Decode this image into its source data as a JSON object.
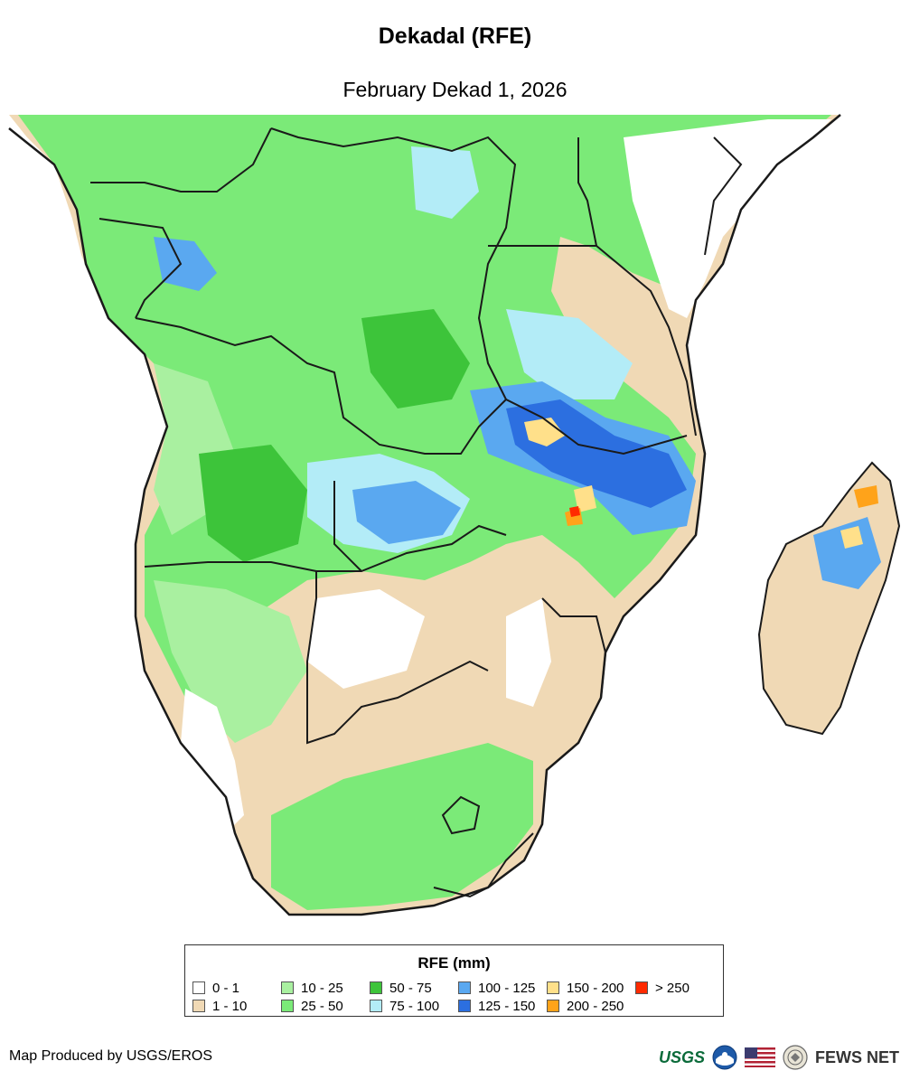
{
  "header": {
    "title": "Dekadal (RFE)",
    "subtitle": "February Dekad 1, 2026"
  },
  "map": {
    "region": "Southern Africa",
    "layer": "rainfall estimate",
    "colors": {
      "ocean_background": "#ffffff",
      "boundary_line": "#1a1a1a"
    }
  },
  "legend": {
    "title": "RFE (mm)",
    "classes": [
      {
        "label": "0 - 1",
        "color": "#ffffff"
      },
      {
        "label": "1 - 10",
        "color": "#f0d9b5"
      },
      {
        "label": "10 - 25",
        "color": "#a9f0a0"
      },
      {
        "label": "25 - 50",
        "color": "#7bea78"
      },
      {
        "label": "50 - 75",
        "color": "#3dc43a"
      },
      {
        "label": "75 - 100",
        "color": "#b3ecf7"
      },
      {
        "label": "100 - 125",
        "color": "#5aa8f0"
      },
      {
        "label": "125 - 150",
        "color": "#2c6fe0"
      },
      {
        "label": "150 - 200",
        "color": "#ffe08a"
      },
      {
        "label": "200 - 250",
        "color": "#ffa31a"
      },
      {
        "label": "> 250",
        "color": "#ff2a00"
      }
    ]
  },
  "footer": {
    "credit": "Map Produced by USGS/EROS",
    "logos": [
      {
        "name": "usgs-logo",
        "text": "USGS"
      },
      {
        "name": "noaa-logo"
      },
      {
        "name": "us-flag-logo"
      },
      {
        "name": "state-dept-seal"
      },
      {
        "name": "fews-net-logo",
        "text": "FEWS NET"
      }
    ]
  }
}
